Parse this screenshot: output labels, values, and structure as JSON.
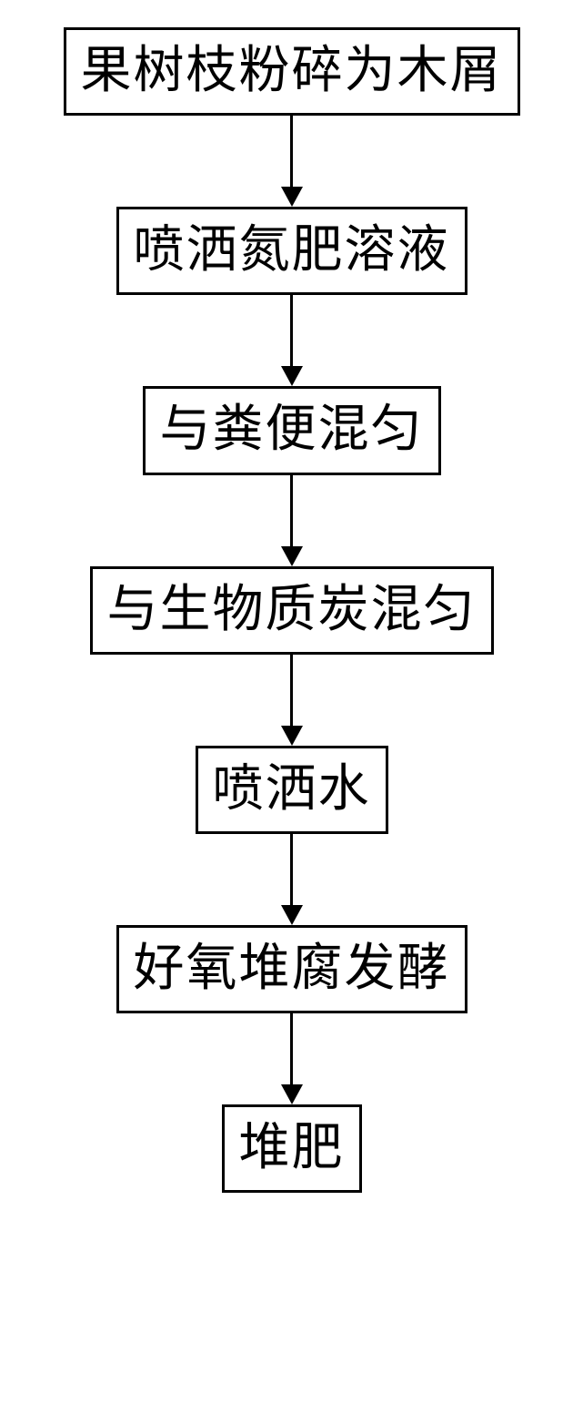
{
  "flowchart": {
    "type": "flowchart",
    "direction": "vertical",
    "background_color": "#ffffff",
    "node_border_color": "#000000",
    "node_border_width": 3,
    "node_background_color": "#ffffff",
    "arrow_color": "#000000",
    "arrow_width": 3,
    "font_family": "SimSun",
    "font_size": 56,
    "text_color": "#000000",
    "nodes": [
      {
        "id": "n1",
        "label": "果树枝粉碎为木屑"
      },
      {
        "id": "n2",
        "label": "喷洒氮肥溶液"
      },
      {
        "id": "n3",
        "label": "与粪便混匀"
      },
      {
        "id": "n4",
        "label": "与生物质炭混匀"
      },
      {
        "id": "n5",
        "label": "喷洒水"
      },
      {
        "id": "n6",
        "label": "好氧堆腐发酵"
      },
      {
        "id": "n7",
        "label": "堆肥"
      }
    ],
    "edges": [
      {
        "from": "n1",
        "to": "n2"
      },
      {
        "from": "n2",
        "to": "n3"
      },
      {
        "from": "n3",
        "to": "n4"
      },
      {
        "from": "n4",
        "to": "n5"
      },
      {
        "from": "n5",
        "to": "n6"
      },
      {
        "from": "n6",
        "to": "n7"
      }
    ],
    "arrow_spacing": 100
  }
}
